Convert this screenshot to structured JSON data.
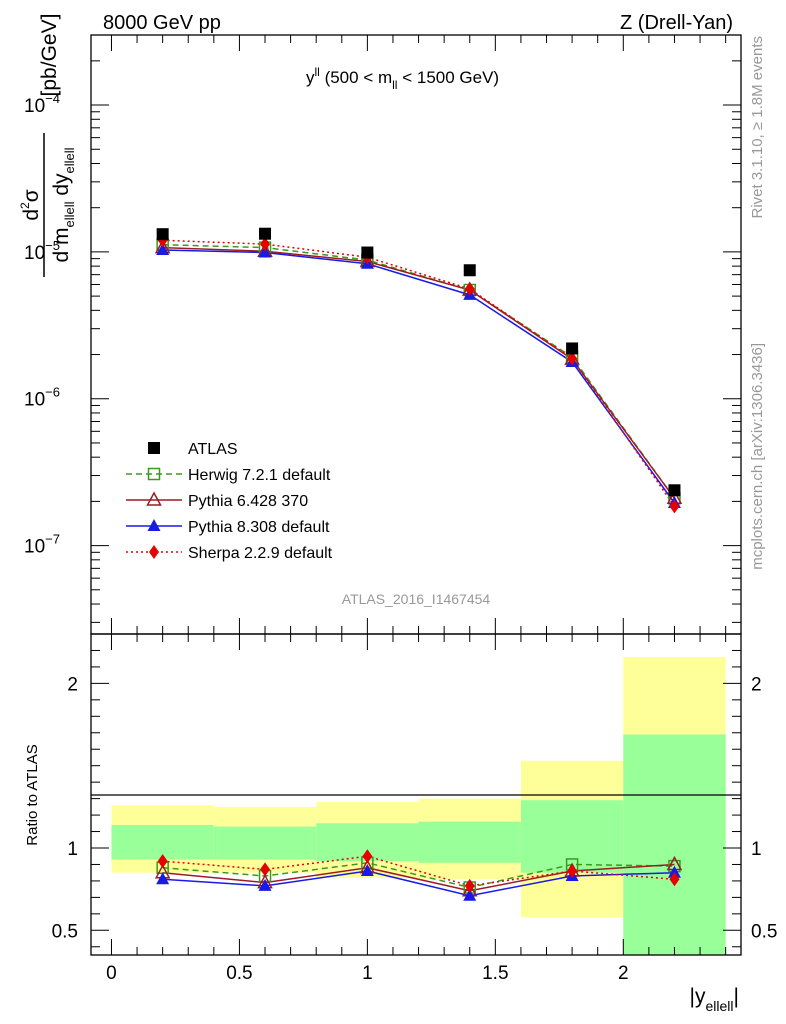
{
  "header": {
    "left": "8000 GeV pp",
    "right": "Z (Drell-Yan)"
  },
  "side_labels": {
    "rivet": "Rivet 3.1.10, ≥ 1.8M events",
    "mcplots": "mcplots.cern.ch [arXiv:1306.3436]"
  },
  "plot_title": {
    "main": "y",
    "sup": "ll",
    "mid": " (500 < m",
    "sub": "ll",
    "end": " < 1500 GeV)"
  },
  "watermark": "ATLAS_2016_I1467454",
  "ylabel": {
    "num_d": "d",
    "num_exp": "2",
    "num_sigma": "σ",
    "den_1": "d m",
    "den_1_sub": "ellell",
    "den_2": " dy",
    "den_2_sub": "ellell",
    "unit": "[pb/GeV]"
  },
  "ratio_ylabel": "Ratio to ATLAS",
  "xlabel": {
    "main": "|y",
    "sub": "ellell",
    "end": "|"
  },
  "colors": {
    "atlas": "#000000",
    "herwig": "#3a9a1e",
    "pythia6": "#9b1c24",
    "pythia8": "#1a1ae6",
    "sherpa": "#e60000",
    "band_inner": "#99ff99",
    "band_outer": "#ffff99"
  },
  "chart_data": {
    "type": "scatter",
    "x": [
      0.2,
      0.6,
      1.0,
      1.4,
      1.8,
      2.2
    ],
    "bins": [
      [
        0,
        0.4
      ],
      [
        0.4,
        0.8
      ],
      [
        0.8,
        1.2
      ],
      [
        1.2,
        1.6
      ],
      [
        1.6,
        2.0
      ],
      [
        2.0,
        2.4
      ]
    ],
    "yscale": "log",
    "ylim": [
      2.5e-08,
      0.0003
    ],
    "xlim": [
      -0.08,
      2.46
    ],
    "main_yticks": [
      {
        "v": 0.0001,
        "m": "10",
        "e": "−4"
      },
      {
        "v": 1e-05,
        "m": "10",
        "e": "−5"
      },
      {
        "v": 1e-06,
        "m": "10",
        "e": "−6"
      },
      {
        "v": 1e-07,
        "m": "10",
        "e": "−7"
      }
    ],
    "xticks": [
      {
        "v": 0,
        "label": "0"
      },
      {
        "v": 0.5,
        "label": "0.5"
      },
      {
        "v": 1,
        "label": "1"
      },
      {
        "v": 1.5,
        "label": "1.5"
      },
      {
        "v": 2,
        "label": "2"
      }
    ],
    "legend_position": "bottom-left",
    "series": [
      {
        "name": "ATLAS",
        "marker": "square",
        "values": [
          1.32e-05,
          1.33e-05,
          9.9e-06,
          7.5e-06,
          2.2e-06,
          2.38e-07
        ]
      },
      {
        "name": "Herwig 7.2.1 default",
        "marker": "open-square",
        "line": "dashed",
        "values": [
          1.12e-05,
          1.07e-05,
          8.8e-06,
          5.5e-06,
          1.92e-06,
          2.1e-07
        ]
      },
      {
        "name": "Pythia 6.428 370",
        "marker": "open-triangle",
        "line": "solid",
        "values": [
          1.07e-05,
          1.01e-05,
          8.6e-06,
          5.5e-06,
          1.86e-06,
          2.1e-07
        ]
      },
      {
        "name": "Pythia 8.308 default",
        "marker": "triangle",
        "line": "solid",
        "values": [
          1.03e-05,
          9.9e-06,
          8.3e-06,
          5.1e-06,
          1.78e-06,
          1.95e-07
        ]
      },
      {
        "name": "Sherpa 2.2.9 default",
        "marker": "diamond",
        "line": "dotted",
        "values": [
          1.2e-05,
          1.13e-05,
          9.2e-06,
          5.6e-06,
          1.88e-06,
          1.85e-07
        ]
      }
    ],
    "ratio": {
      "ylim": [
        0.35,
        2.3
      ],
      "yticks": [
        {
          "v": 0.5,
          "label": "0.5"
        },
        {
          "v": 1,
          "label": "1"
        },
        {
          "v": 2,
          "label": "2"
        }
      ],
      "band_inner": [
        [
          0.93,
          1.14
        ],
        [
          0.93,
          1.13
        ],
        [
          0.92,
          1.15
        ],
        [
          0.91,
          1.16
        ],
        [
          0.85,
          1.29
        ],
        [
          0.35,
          1.69
        ]
      ],
      "band_outer": [
        [
          0.85,
          1.26
        ],
        [
          0.85,
          1.25
        ],
        [
          0.82,
          1.28
        ],
        [
          0.81,
          1.3
        ],
        [
          0.58,
          1.53
        ],
        [
          0.35,
          2.16
        ]
      ],
      "series": [
        {
          "name": "Herwig 7.2.1 default",
          "values": [
            0.88,
            0.83,
            0.91,
            0.76,
            0.9,
            0.89
          ]
        },
        {
          "name": "Pythia 6.428 370",
          "values": [
            0.85,
            0.79,
            0.88,
            0.74,
            0.86,
            0.9
          ]
        },
        {
          "name": "Pythia 8.308 default",
          "values": [
            0.81,
            0.77,
            0.86,
            0.71,
            0.83,
            0.85
          ]
        },
        {
          "name": "Sherpa 2.2.9 default",
          "values": [
            0.92,
            0.87,
            0.95,
            0.77,
            0.86,
            0.81
          ]
        }
      ]
    }
  }
}
